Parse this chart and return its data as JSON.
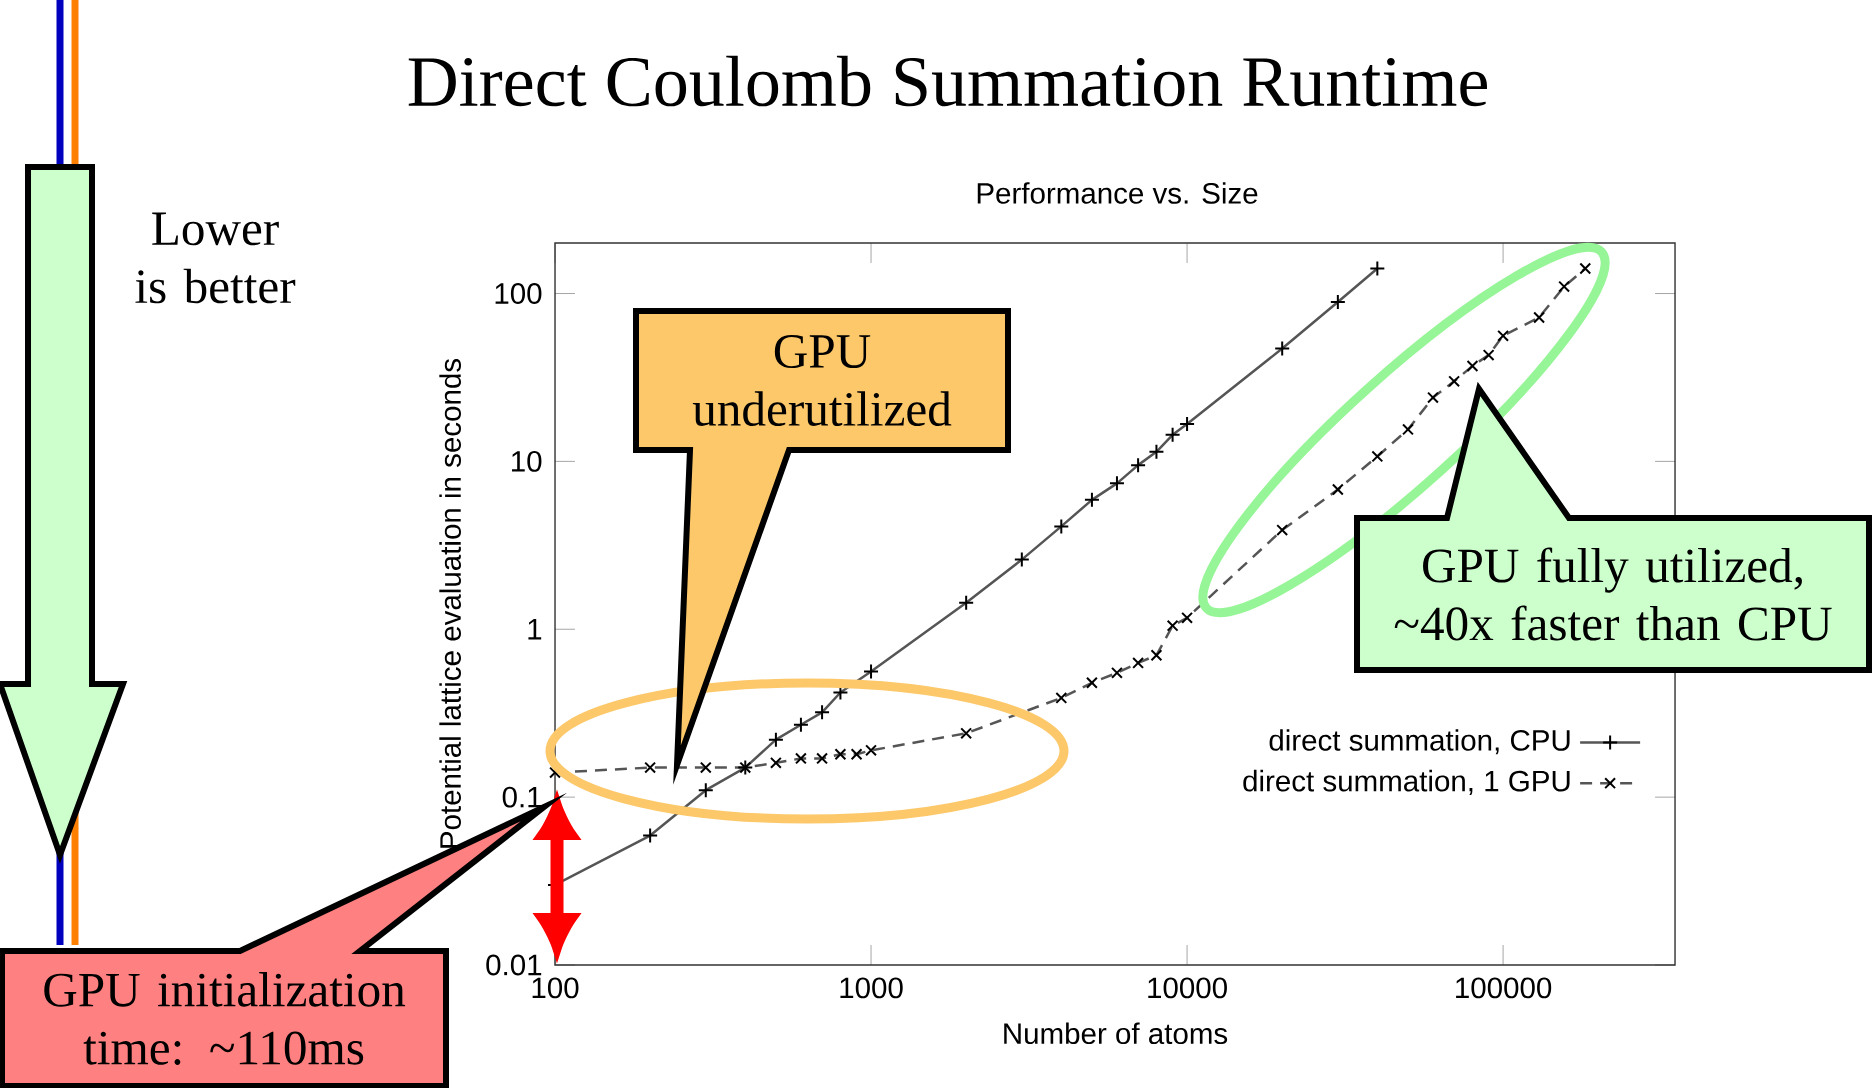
{
  "chart_data": {
    "type": "line",
    "title": "Direct Coulomb Summation Runtime",
    "subtitle": "Performance vs. Size",
    "xlabel": "Number of atoms",
    "ylabel": "Potential lattice evaluation in seconds",
    "log": "xy",
    "xlim": [
      100,
      350000
    ],
    "ylim": [
      0.01,
      200
    ],
    "xticks": [
      100,
      1000,
      10000,
      100000
    ],
    "yticks": [
      0.01,
      0.1,
      1,
      10,
      100
    ],
    "legend": "right",
    "series": [
      {
        "name": "direct summation, CPU",
        "color": "#555555",
        "marker": "plus",
        "line_style": "solid",
        "x": [
          100,
          200,
          300,
          400,
          500,
          600,
          700,
          800,
          1000,
          2000,
          3000,
          4000,
          5000,
          6000,
          7000,
          8000,
          9000,
          10000,
          20000,
          30000,
          40000
        ],
        "values": [
          0.03,
          0.059,
          0.11,
          0.15,
          0.22,
          0.27,
          0.32,
          0.42,
          0.56,
          1.44,
          2.6,
          4.1,
          5.9,
          7.4,
          9.5,
          11.4,
          14.4,
          16.7,
          47,
          89,
          141
        ]
      },
      {
        "name": "direct summation, 1 GPU",
        "color": "#555555",
        "marker": "cross",
        "line_style": "dashed",
        "x": [
          100,
          200,
          300,
          400,
          500,
          600,
          700,
          800,
          900,
          1000,
          2000,
          3000,
          4000,
          5000,
          6000,
          7000,
          8000,
          9000,
          10000,
          20000,
          30000,
          40000,
          50000,
          60000,
          70000,
          80000,
          90000,
          100000,
          130000,
          156000,
          182000
        ],
        "values": [
          0.14,
          0.15,
          0.15,
          0.15,
          0.16,
          0.17,
          0.17,
          0.18,
          0.18,
          0.19,
          0.24,
          null,
          0.39,
          0.48,
          0.55,
          0.63,
          0.7,
          1.05,
          1.17,
          3.9,
          6.8,
          10.7,
          15.5,
          24,
          30,
          37,
          43,
          56,
          72,
          110,
          141
        ]
      }
    ],
    "annotations": [
      "Lower is better",
      "GPU underutilized",
      "GPU fully utilized, ~40x faster than CPU",
      "GPU initialization time: ~110ms"
    ]
  }
}
